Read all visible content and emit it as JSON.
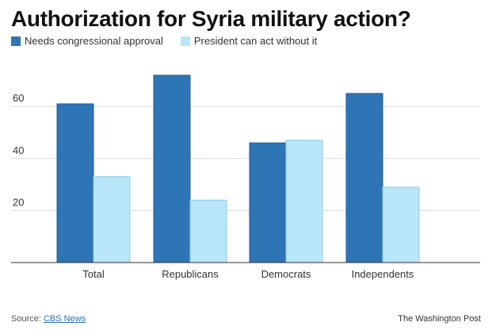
{
  "chart_data": {
    "type": "bar",
    "title": "Authorization for Syria military action?",
    "categories": [
      "Total",
      "Republicans",
      "Democrats",
      "Independents"
    ],
    "series": [
      {
        "name": "Needs congressional approval",
        "color": "#2e75b6",
        "values": [
          61,
          72,
          46,
          65
        ]
      },
      {
        "name": "President can act without it",
        "color": "#b9e6f9",
        "values": [
          33,
          24,
          47,
          29
        ]
      }
    ],
    "yticks": [
      "20",
      "40",
      "60"
    ],
    "ytick_values": [
      20,
      40,
      60
    ],
    "ylim": [
      0,
      80
    ],
    "xlabel": "",
    "ylabel": "",
    "grid": true
  },
  "footer": {
    "source_prefix": "Source: ",
    "source_link": "CBS News",
    "credit": "The Washington Post"
  }
}
